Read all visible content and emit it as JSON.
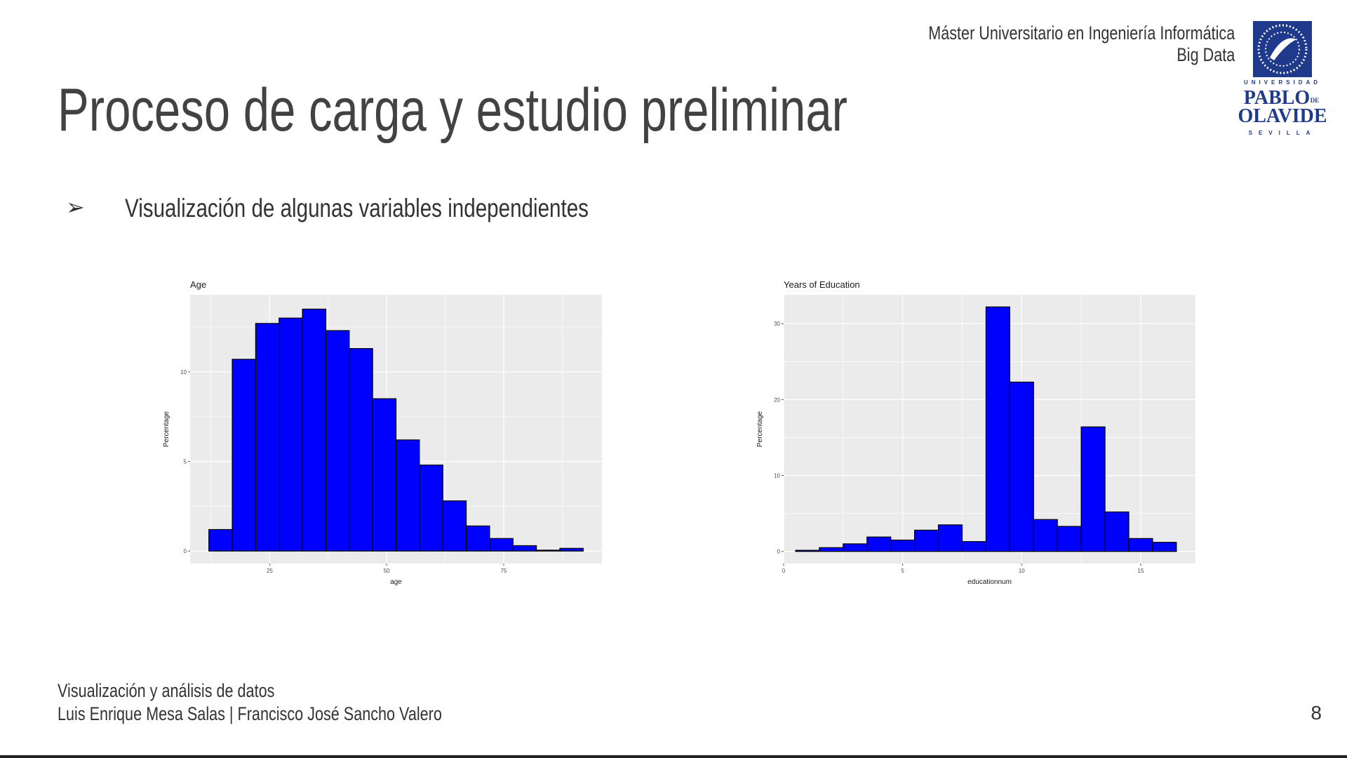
{
  "header": {
    "line1": "Máster Universitario en Ingeniería Informática",
    "line2": "Big Data"
  },
  "logo": {
    "text_top": "UNIVERSIDAD",
    "text_name1": "PABLO",
    "text_name_de": "DE",
    "text_name2": "OLAVIDE",
    "text_city": "SEVILLA",
    "color": "#1f3a8a"
  },
  "slide": {
    "title": "Proceso de carga y estudio preliminar",
    "bullet_symbol": "➢",
    "bullet_text": "Visualización de algunas variables independientes"
  },
  "footer": {
    "line1": "Visualización y análisis de datos",
    "line2": "Luis Enrique Mesa Salas | Francisco José Sancho Valero",
    "page_number": "8"
  },
  "colors": {
    "bar_fill": "#0000ff",
    "panel_bg": "#ebebeb",
    "grid": "#ffffff"
  },
  "chart_data": [
    {
      "type": "bar",
      "title": "Age",
      "xlabel": "age",
      "ylabel": "Percentage",
      "bin_edges": [
        12,
        17,
        22,
        27,
        32,
        37,
        42,
        47,
        52,
        57,
        62,
        67,
        72,
        77,
        82,
        87,
        92
      ],
      "values": [
        1.2,
        10.7,
        12.7,
        13.0,
        13.5,
        12.3,
        11.3,
        8.5,
        6.2,
        4.8,
        2.8,
        1.4,
        0.7,
        0.3,
        0.05,
        0.15
      ],
      "x_ticks": [
        25,
        50,
        75
      ],
      "y_ticks": [
        0,
        5,
        10
      ],
      "xlim": [
        8,
        96
      ],
      "ylim": [
        -0.7,
        14.3
      ],
      "grid": true
    },
    {
      "type": "bar",
      "title": "Years of Education",
      "xlabel": "educationnum",
      "ylabel": "Percentage",
      "bin_edges": [
        0.5,
        1.5,
        2.5,
        3.5,
        4.5,
        5.5,
        6.5,
        7.5,
        8.5,
        9.5,
        10.5,
        11.5,
        12.5,
        13.5,
        14.5,
        15.5,
        16.5
      ],
      "values": [
        0.15,
        0.5,
        1.0,
        1.9,
        1.5,
        2.8,
        3.5,
        1.3,
        32.2,
        22.3,
        4.2,
        3.3,
        16.4,
        5.2,
        1.7,
        1.2
      ],
      "x_ticks": [
        0,
        5,
        10,
        15
      ],
      "y_ticks": [
        0,
        10,
        20,
        30
      ],
      "xlim": [
        0,
        17.3
      ],
      "ylim": [
        -1.6,
        33.8
      ],
      "grid": true
    }
  ]
}
